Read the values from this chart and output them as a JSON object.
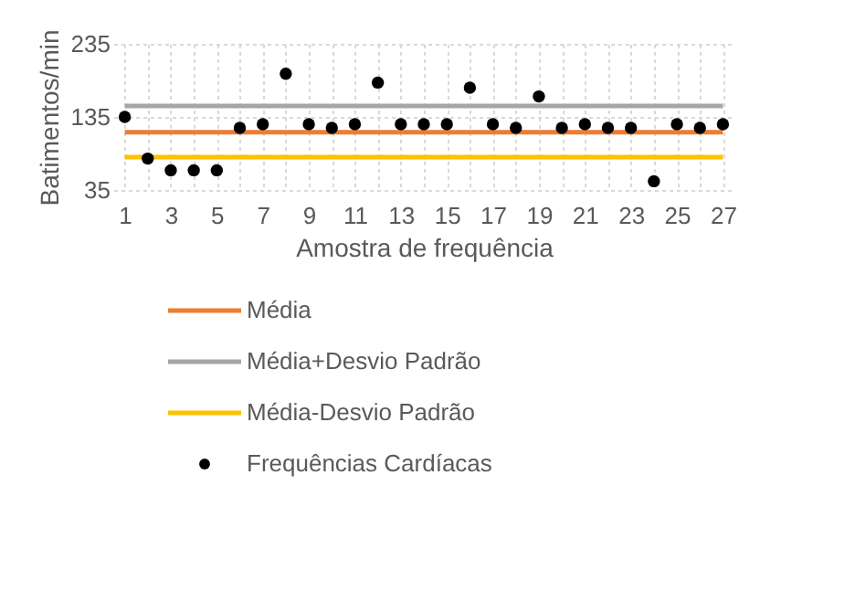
{
  "chart_data": {
    "type": "scatter",
    "xlabel": "Amostra de frequência",
    "ylabel": "Batimentos/min",
    "x": [
      1,
      2,
      3,
      4,
      5,
      6,
      7,
      8,
      9,
      10,
      11,
      12,
      13,
      14,
      15,
      16,
      17,
      18,
      19,
      20,
      21,
      22,
      23,
      24,
      25,
      26,
      27
    ],
    "xlim": [
      0.5,
      27.5
    ],
    "xticks": [
      1,
      {
        "value": 2,
        "label": null
      },
      3,
      {
        "value": 4,
        "label": null
      },
      5,
      {
        "value": 6,
        "label": null
      },
      7,
      {
        "value": 8,
        "label": null
      },
      9,
      {
        "value": 10,
        "label": null
      },
      11,
      {
        "value": 12,
        "label": null
      },
      13,
      {
        "value": 14,
        "label": null
      },
      15,
      {
        "value": 16,
        "label": null
      },
      17,
      {
        "value": 18,
        "label": null
      },
      19,
      {
        "value": 20,
        "label": null
      },
      21,
      {
        "value": 22,
        "label": null
      },
      23,
      {
        "value": 24,
        "label": null
      },
      25,
      {
        "value": 26,
        "label": null
      },
      27
    ],
    "series": [
      {
        "name": "Média",
        "type": "line",
        "marker": "none",
        "color": "#ed7d31",
        "values": [
          114,
          114,
          114,
          114,
          114,
          114,
          114,
          114,
          114,
          114,
          114,
          114,
          114,
          114,
          114,
          114,
          114,
          114,
          114,
          114,
          114,
          114,
          114,
          114,
          114,
          114,
          114
        ]
      },
      {
        "name": "Média+Desvio Padrão",
        "type": "line",
        "marker": "none",
        "color": "#a5a5a5",
        "values": [
          150,
          150,
          150,
          150,
          150,
          150,
          150,
          150,
          150,
          150,
          150,
          150,
          150,
          150,
          150,
          150,
          150,
          150,
          150,
          150,
          150,
          150,
          150,
          150,
          150,
          150,
          150
        ]
      },
      {
        "name": "Média-Desvio Padrão",
        "type": "line",
        "marker": "none",
        "color": "#ffc000",
        "values": [
          80,
          80,
          80,
          80,
          80,
          80,
          80,
          80,
          80,
          80,
          80,
          80,
          80,
          80,
          80,
          80,
          80,
          80,
          80,
          80,
          80,
          80,
          80,
          80,
          80,
          80,
          80
        ]
      },
      {
        "name": "Frequências Cardíacas",
        "marker": "circle",
        "color": "#000000",
        "values": [
          135,
          78,
          62,
          62,
          62,
          120,
          125,
          194,
          125,
          120,
          125,
          182,
          125,
          125,
          125,
          175,
          125,
          120,
          163,
          120,
          125,
          120,
          120,
          47,
          125,
          120,
          125
        ]
      }
    ],
    "ylim": [
      35,
      235
    ],
    "yticks": [
      35,
      135,
      235
    ],
    "grid": true,
    "legend": "bottom"
  }
}
